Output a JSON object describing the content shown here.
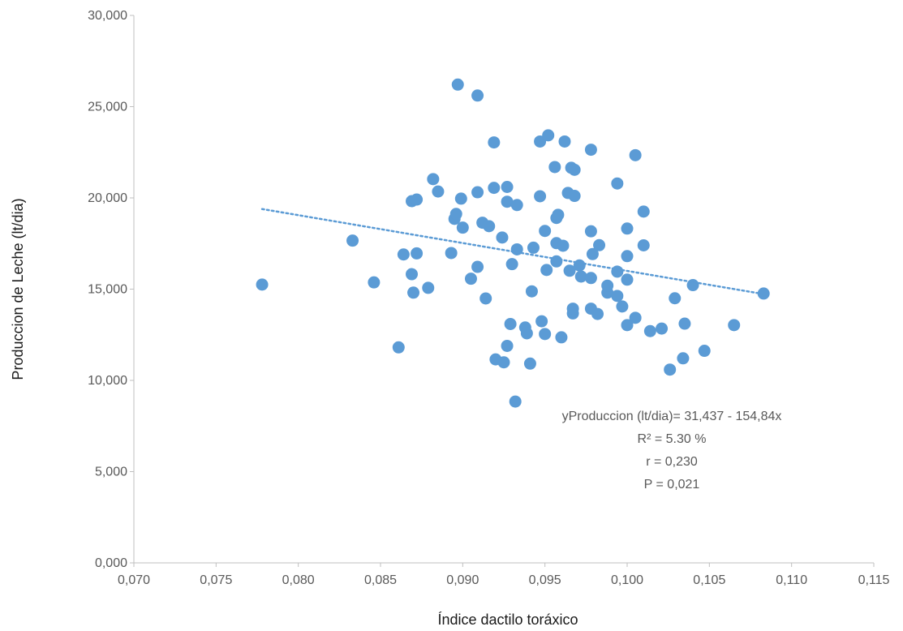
{
  "chart_data": {
    "type": "scatter",
    "title": "",
    "xlabel": "Índice dactilo toráxico",
    "ylabel": "Produccion de Leche (lt/dia)",
    "xlim": [
      0.07,
      0.115
    ],
    "ylim": [
      0,
      30000
    ],
    "x_ticks": [
      0.07,
      0.075,
      0.08,
      0.085,
      0.09,
      0.095,
      0.1,
      0.105,
      0.11,
      0.115
    ],
    "x_tick_labels": [
      "0,070",
      "0,075",
      "0,080",
      "0,085",
      "0,090",
      "0,095",
      "0,100",
      "0,105",
      "0,110",
      "0,115"
    ],
    "y_ticks": [
      0,
      5000,
      10000,
      15000,
      20000,
      25000,
      30000
    ],
    "y_tick_labels": [
      "0,000",
      "5,000",
      "10,000",
      "15,000",
      "20,000",
      "25,000",
      "30,000"
    ],
    "grid": false,
    "legend": "none",
    "colors": {
      "points": "#5b9bd5",
      "trendline": "#5b9bd5",
      "axis": "#bfbfbf",
      "text": "#595959"
    },
    "trendline": {
      "style": "dotted",
      "x": [
        0.0778,
        0.1083
      ],
      "y": [
        19390,
        14730
      ]
    },
    "annotations": [
      "yProduccion (lt/dia)= 31,437 - 154,84x",
      "R² = 5.30 %",
      "r = 0,230",
      "P = 0,021"
    ],
    "points": [
      [
        0.0778,
        15250
      ],
      [
        0.0833,
        17660
      ],
      [
        0.0846,
        15370
      ],
      [
        0.0861,
        11810
      ],
      [
        0.0864,
        16900
      ],
      [
        0.0869,
        15820
      ],
      [
        0.0869,
        19820
      ],
      [
        0.087,
        14810
      ],
      [
        0.0872,
        16960
      ],
      [
        0.0872,
        19910
      ],
      [
        0.0879,
        15070
      ],
      [
        0.0882,
        21030
      ],
      [
        0.0885,
        20350
      ],
      [
        0.0893,
        16980
      ],
      [
        0.0895,
        18850
      ],
      [
        0.0896,
        19120
      ],
      [
        0.0897,
        26210
      ],
      [
        0.0899,
        19960
      ],
      [
        0.09,
        18370
      ],
      [
        0.0905,
        15570
      ],
      [
        0.0909,
        20310
      ],
      [
        0.0909,
        16220
      ],
      [
        0.0909,
        25610
      ],
      [
        0.0912,
        18640
      ],
      [
        0.0914,
        14490
      ],
      [
        0.0916,
        18450
      ],
      [
        0.0919,
        20550
      ],
      [
        0.0919,
        23040
      ],
      [
        0.092,
        11150
      ],
      [
        0.0924,
        17830
      ],
      [
        0.0925,
        10990
      ],
      [
        0.0927,
        11890
      ],
      [
        0.0927,
        20600
      ],
      [
        0.0927,
        19790
      ],
      [
        0.0929,
        13090
      ],
      [
        0.093,
        16370
      ],
      [
        0.0932,
        8840
      ],
      [
        0.0933,
        19610
      ],
      [
        0.0933,
        17180
      ],
      [
        0.0938,
        12900
      ],
      [
        0.0939,
        12580
      ],
      [
        0.0941,
        10920
      ],
      [
        0.0942,
        14880
      ],
      [
        0.0943,
        17270
      ],
      [
        0.0947,
        20090
      ],
      [
        0.0947,
        23090
      ],
      [
        0.0948,
        13240
      ],
      [
        0.095,
        18190
      ],
      [
        0.095,
        12540
      ],
      [
        0.0951,
        16050
      ],
      [
        0.0952,
        23430
      ],
      [
        0.0956,
        21690
      ],
      [
        0.0957,
        18900
      ],
      [
        0.0957,
        17520
      ],
      [
        0.0957,
        16520
      ],
      [
        0.0958,
        19070
      ],
      [
        0.096,
        12360
      ],
      [
        0.0961,
        17380
      ],
      [
        0.0962,
        23090
      ],
      [
        0.0964,
        20270
      ],
      [
        0.0965,
        16010
      ],
      [
        0.0966,
        21650
      ],
      [
        0.0967,
        13670
      ],
      [
        0.0967,
        13930
      ],
      [
        0.0968,
        21540
      ],
      [
        0.0968,
        20110
      ],
      [
        0.0971,
        16300
      ],
      [
        0.0972,
        15690
      ],
      [
        0.0978,
        22640
      ],
      [
        0.0978,
        18170
      ],
      [
        0.0978,
        15610
      ],
      [
        0.0978,
        13930
      ],
      [
        0.0979,
        16920
      ],
      [
        0.0982,
        13640
      ],
      [
        0.0983,
        17410
      ],
      [
        0.0988,
        14810
      ],
      [
        0.0988,
        15190
      ],
      [
        0.0994,
        20790
      ],
      [
        0.0994,
        15960
      ],
      [
        0.0994,
        14630
      ],
      [
        0.0997,
        14050
      ],
      [
        0.1,
        18320
      ],
      [
        0.1,
        16810
      ],
      [
        0.1,
        15520
      ],
      [
        0.1,
        13030
      ],
      [
        0.1005,
        22340
      ],
      [
        0.1005,
        13430
      ],
      [
        0.101,
        19250
      ],
      [
        0.101,
        17400
      ],
      [
        0.1014,
        12700
      ],
      [
        0.1021,
        12840
      ],
      [
        0.1026,
        10590
      ],
      [
        0.1029,
        14500
      ],
      [
        0.1034,
        11210
      ],
      [
        0.1035,
        13110
      ],
      [
        0.104,
        15220
      ],
      [
        0.1047,
        11620
      ],
      [
        0.1065,
        13030
      ],
      [
        0.1083,
        14760
      ]
    ]
  }
}
